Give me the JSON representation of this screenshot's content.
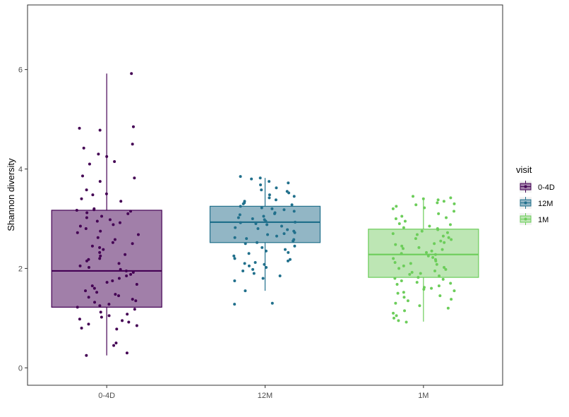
{
  "chart_data": {
    "type": "box",
    "xlabel": "",
    "ylabel": "Shannon diversity",
    "ylim": [
      -0.35,
      7.3
    ],
    "yticks": [
      0,
      2,
      4,
      6
    ],
    "categories": [
      "0-4D",
      "12M",
      "1M"
    ],
    "legend": {
      "title": "visit",
      "position": "right",
      "entries": [
        "0-4D",
        "12M",
        "1M"
      ]
    },
    "grid": false,
    "colors": {
      "0-4D": "#440154",
      "12M": "#21708c",
      "1M": "#6ccd5a"
    },
    "fill_colors": {
      "0-4D": "#a17fa9",
      "12M": "#92b6c5",
      "1M": "#bde6b4"
    },
    "boxes": [
      {
        "category": "0-4D",
        "lower_whisker": 0.25,
        "q1": 1.22,
        "median": 1.95,
        "q3": 3.17,
        "upper_whisker": 5.92
      },
      {
        "category": "12M",
        "lower_whisker": 1.55,
        "q1": 2.52,
        "median": 2.93,
        "q3": 3.25,
        "upper_whisker": 3.82
      },
      {
        "category": "1M",
        "lower_whisker": 0.93,
        "q1": 1.82,
        "median": 2.28,
        "q3": 2.79,
        "upper_whisker": 3.42
      }
    ],
    "points": {
      "0-4D": [
        5.92,
        4.85,
        4.82,
        4.78,
        4.5,
        4.42,
        4.3,
        4.25,
        4.15,
        4.1,
        3.86,
        3.82,
        3.75,
        3.58,
        3.5,
        3.48,
        3.4,
        3.35,
        3.2,
        3.18,
        3.17,
        3.15,
        3.12,
        3.1,
        3.05,
        3.02,
        2.98,
        2.95,
        2.92,
        2.88,
        2.85,
        2.8,
        2.75,
        2.72,
        2.68,
        2.62,
        2.58,
        2.52,
        2.5,
        2.45,
        2.42,
        2.38,
        2.32,
        2.28,
        2.25,
        2.2,
        2.18,
        2.15,
        2.1,
        2.05,
        2.02,
        1.98,
        1.95,
        1.92,
        1.88,
        1.85,
        1.8,
        1.75,
        1.72,
        1.68,
        1.65,
        1.6,
        1.55,
        1.52,
        1.48,
        1.45,
        1.42,
        1.38,
        1.35,
        1.32,
        1.28,
        1.25,
        1.22,
        1.18,
        1.12,
        1.08,
        1.05,
        1.02,
        0.98,
        0.95,
        0.92,
        0.88,
        0.85,
        0.8,
        0.78,
        0.5,
        0.45,
        0.3,
        0.25
      ],
      "12M": [
        3.85,
        3.82,
        3.8,
        3.75,
        3.72,
        3.68,
        3.62,
        3.58,
        3.55,
        3.52,
        3.48,
        3.45,
        3.42,
        3.38,
        3.35,
        3.32,
        3.3,
        3.28,
        3.25,
        3.22,
        3.2,
        3.18,
        3.15,
        3.12,
        3.1,
        3.08,
        3.05,
        3.02,
        3.0,
        2.98,
        2.95,
        2.93,
        2.92,
        2.9,
        2.88,
        2.85,
        2.82,
        2.8,
        2.78,
        2.75,
        2.72,
        2.7,
        2.68,
        2.65,
        2.62,
        2.6,
        2.58,
        2.55,
        2.52,
        2.5,
        2.45,
        2.42,
        2.38,
        2.35,
        2.32,
        2.3,
        2.25,
        2.2,
        2.18,
        2.15,
        2.12,
        2.1,
        2.08,
        2.05,
        2.02,
        1.98,
        1.95,
        1.9,
        1.85,
        1.8,
        1.75,
        1.55,
        1.3,
        1.28
      ],
      "1M": [
        3.45,
        3.42,
        3.4,
        3.38,
        3.35,
        3.32,
        3.3,
        3.28,
        3.25,
        3.22,
        3.2,
        3.15,
        3.1,
        3.05,
        3.02,
        3.0,
        2.95,
        2.9,
        2.88,
        2.85,
        2.82,
        2.8,
        2.78,
        2.75,
        2.72,
        2.7,
        2.68,
        2.65,
        2.62,
        2.6,
        2.58,
        2.55,
        2.52,
        2.5,
        2.48,
        2.45,
        2.42,
        2.4,
        2.38,
        2.35,
        2.32,
        2.3,
        2.28,
        2.25,
        2.22,
        2.2,
        2.18,
        2.15,
        2.12,
        2.1,
        2.08,
        2.05,
        2.02,
        2.0,
        1.98,
        1.95,
        1.92,
        1.9,
        1.88,
        1.85,
        1.82,
        1.8,
        1.78,
        1.75,
        1.72,
        1.7,
        1.68,
        1.65,
        1.62,
        1.6,
        1.58,
        1.55,
        1.52,
        1.5,
        1.45,
        1.42,
        1.38,
        1.35,
        1.3,
        1.25,
        1.2,
        1.15,
        1.1,
        1.05,
        1.0,
        0.95,
        0.92
      ]
    }
  }
}
